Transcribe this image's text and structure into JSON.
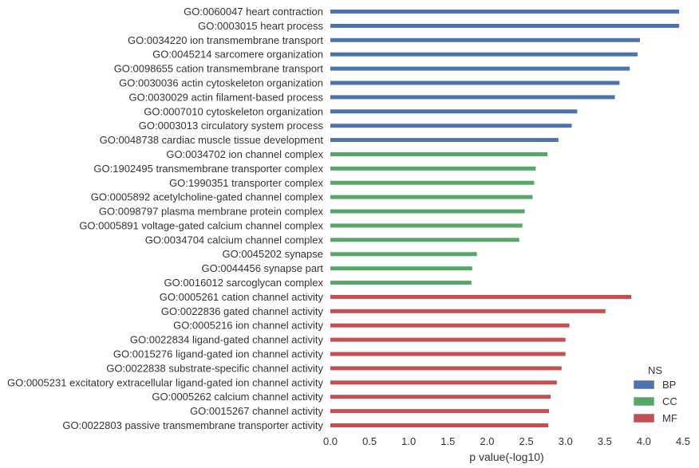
{
  "chart_data": {
    "type": "bar",
    "orientation": "horizontal",
    "xlabel": "p value(-log10)",
    "ylabel": "",
    "xlim": [
      0,
      4.5
    ],
    "xticks": [
      0.0,
      0.5,
      1.0,
      1.5,
      2.0,
      2.5,
      3.0,
      3.5,
      4.0,
      4.5
    ],
    "xtick_labels": [
      "0.0",
      "0.5",
      "1.0",
      "1.5",
      "2.0",
      "2.5",
      "3.0",
      "3.5",
      "4.0",
      "4.5"
    ],
    "grid": false,
    "legend": {
      "title": "NS",
      "placement": "bottom-right",
      "entries": [
        {
          "name": "BP",
          "color": "#4c72b0"
        },
        {
          "name": "CC",
          "color": "#55a868"
        },
        {
          "name": "MF",
          "color": "#c44e52"
        }
      ]
    },
    "bars": [
      {
        "category": "GO:0060047 heart contraction",
        "ns": "BP",
        "value": 4.45
      },
      {
        "category": "GO:0003015 heart process",
        "ns": "BP",
        "value": 4.45
      },
      {
        "category": "GO:0034220 ion transmembrane transport",
        "ns": "BP",
        "value": 3.95
      },
      {
        "category": "GO:0045214 sarcomere organization",
        "ns": "BP",
        "value": 3.92
      },
      {
        "category": "GO:0098655 cation transmembrane transport",
        "ns": "BP",
        "value": 3.82
      },
      {
        "category": "GO:0030036 actin cytoskeleton organization",
        "ns": "BP",
        "value": 3.69
      },
      {
        "category": "GO:0030029 actin filament-based process",
        "ns": "BP",
        "value": 3.63
      },
      {
        "category": "GO:0007010 cytoskeleton organization",
        "ns": "BP",
        "value": 3.15
      },
      {
        "category": "GO:0003013 circulatory system process",
        "ns": "BP",
        "value": 3.08
      },
      {
        "category": "GO:0048738 cardiac muscle tissue development",
        "ns": "BP",
        "value": 2.91
      },
      {
        "category": "GO:0034702 ion channel complex",
        "ns": "CC",
        "value": 2.77
      },
      {
        "category": "GO:1902495 transmembrane transporter complex",
        "ns": "CC",
        "value": 2.62
      },
      {
        "category": "GO:1990351 transporter complex",
        "ns": "CC",
        "value": 2.6
      },
      {
        "category": "GO:0005892 acetylcholine-gated channel complex",
        "ns": "CC",
        "value": 2.58
      },
      {
        "category": "GO:0098797 plasma membrane protein complex",
        "ns": "CC",
        "value": 2.48
      },
      {
        "category": "GO:0005891 voltage-gated calcium channel complex",
        "ns": "CC",
        "value": 2.45
      },
      {
        "category": "GO:0034704 calcium channel complex",
        "ns": "CC",
        "value": 2.41
      },
      {
        "category": "GO:0045202 synapse",
        "ns": "CC",
        "value": 1.87
      },
      {
        "category": "GO:0044456 synapse part",
        "ns": "CC",
        "value": 1.81
      },
      {
        "category": "GO:0016012 sarcoglycan complex",
        "ns": "CC",
        "value": 1.8
      },
      {
        "category": "GO:0005261 cation channel activity",
        "ns": "MF",
        "value": 3.84
      },
      {
        "category": "GO:0022836 gated channel activity",
        "ns": "MF",
        "value": 3.51
      },
      {
        "category": "GO:0005216 ion channel activity",
        "ns": "MF",
        "value": 3.05
      },
      {
        "category": "GO:0022834 ligand-gated channel activity",
        "ns": "MF",
        "value": 3.0
      },
      {
        "category": "GO:0015276 ligand-gated ion channel activity",
        "ns": "MF",
        "value": 3.0
      },
      {
        "category": "GO:0022838 substrate-specific channel activity",
        "ns": "MF",
        "value": 2.95
      },
      {
        "category": "GO:0005231 excitatory extracellular ligand-gated ion channel activity",
        "ns": "MF",
        "value": 2.89
      },
      {
        "category": "GO:0005262 calcium channel activity",
        "ns": "MF",
        "value": 2.81
      },
      {
        "category": "GO:0015267 channel activity",
        "ns": "MF",
        "value": 2.79
      },
      {
        "category": "GO:0022803 passive transmembrane transporter activity",
        "ns": "MF",
        "value": 2.78
      }
    ]
  }
}
